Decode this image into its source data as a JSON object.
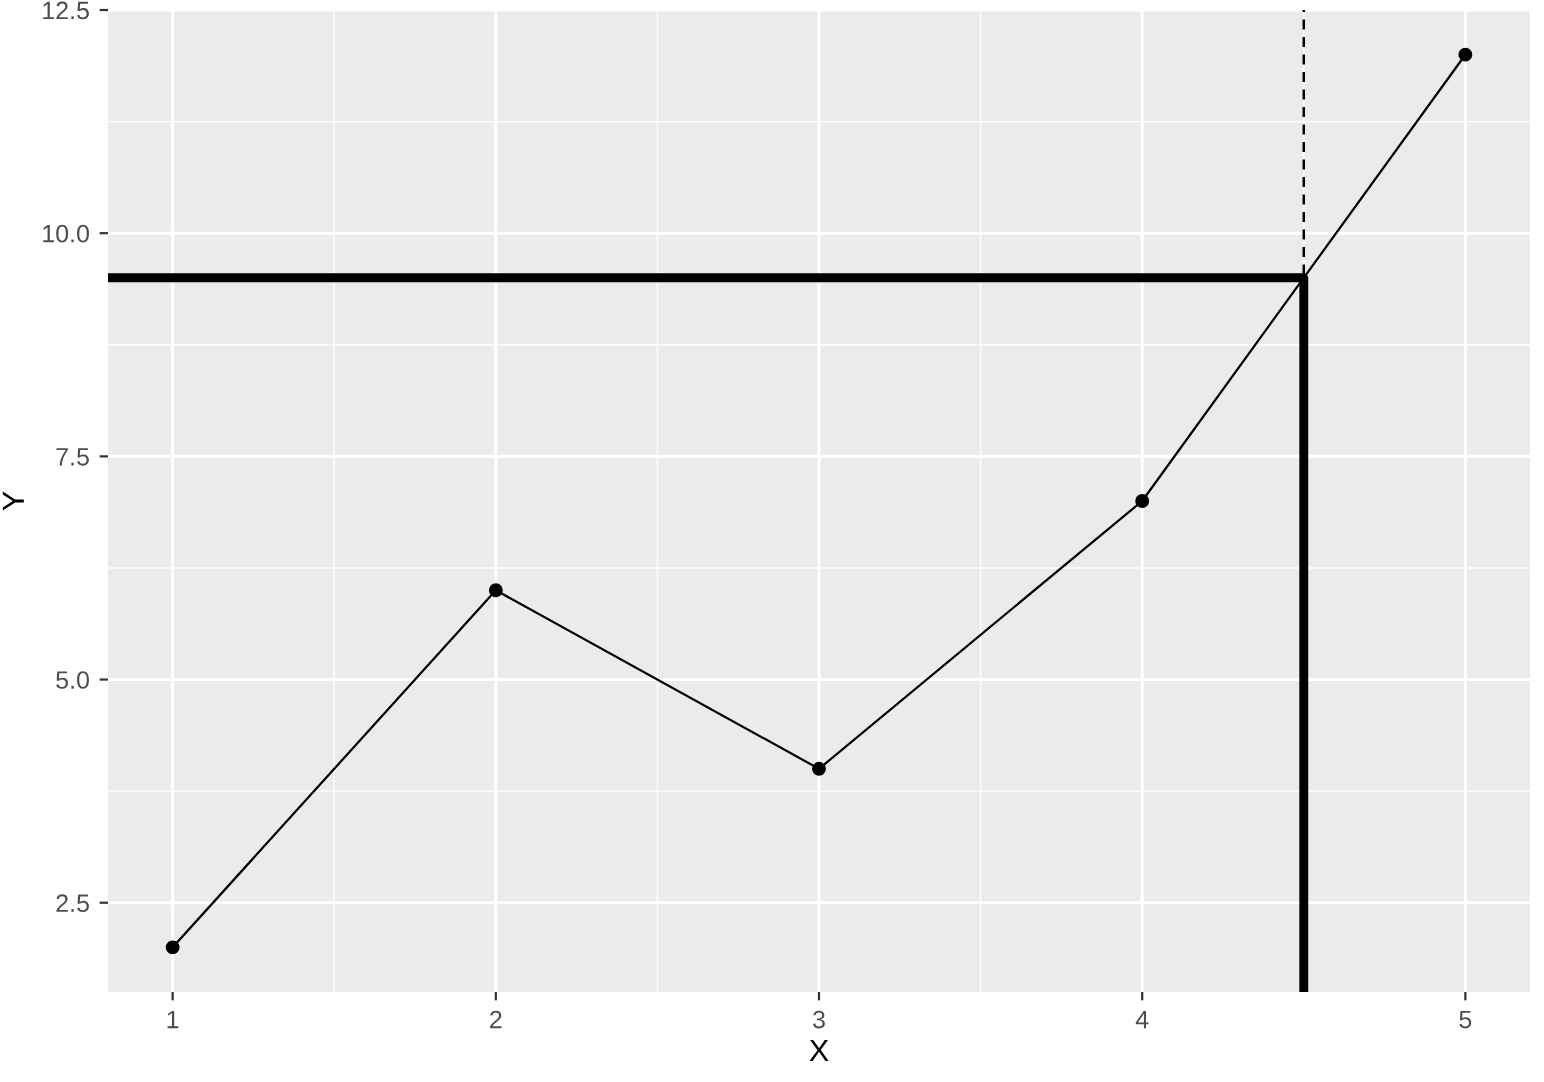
{
  "chart_data": {
    "type": "line",
    "xlabel": "X",
    "ylabel": "Y",
    "series": [
      {
        "color": "#000000",
        "x": [
          1,
          2,
          3,
          4,
          5
        ],
        "values": [
          2,
          6,
          4,
          7,
          12
        ],
        "marker": "circle"
      },
      {
        "color": "#000000",
        "x": [
          0.8,
          4.5,
          4.5
        ],
        "values": [
          9.5,
          9.5,
          1.5
        ],
        "marker": "none"
      }
    ],
    "ref_lines": [
      {
        "axis": "x",
        "value": 4.5,
        "color": "#000000",
        "line_style": "dashed"
      }
    ],
    "xlim": [
      0.8,
      5.2
    ],
    "ylim": [
      1.5,
      12.5
    ],
    "xticks": [
      1,
      2,
      3,
      4,
      5
    ],
    "yticks": [
      {
        "value": 2.5,
        "label": "2.5"
      },
      {
        "value": 5,
        "label": "5.0"
      },
      {
        "value": 7.5,
        "label": "7.5"
      },
      {
        "value": 10,
        "label": "10.0"
      },
      {
        "value": 12.5,
        "label": "12.5"
      }
    ],
    "grid": true,
    "legend": false
  }
}
